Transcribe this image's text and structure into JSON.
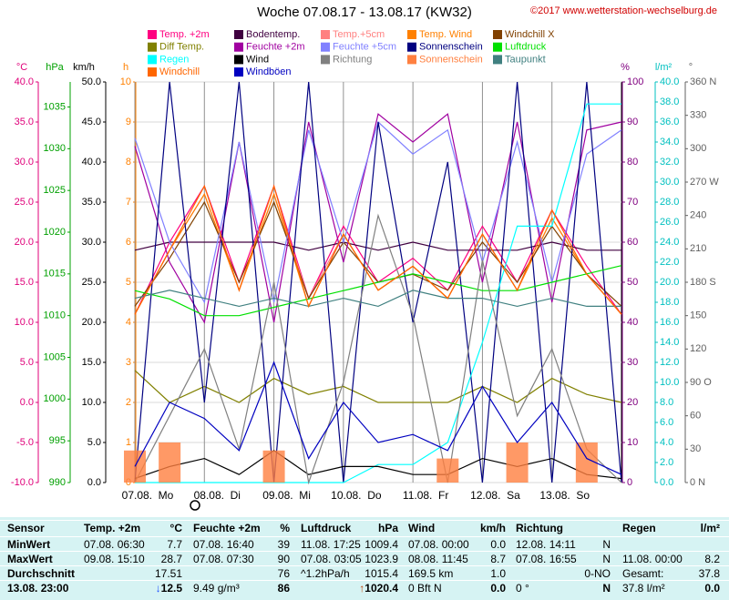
{
  "chart_data": {
    "type": "line",
    "title": "Woche 07.08.17 - 13.08.17 (KW32)",
    "copyright": "©2017 www.wetterstation-wechselburg.de",
    "grid": true,
    "x": [
      0,
      12,
      24,
      36,
      48,
      60,
      72,
      84,
      96,
      108,
      120,
      132,
      144,
      156,
      168
    ],
    "xlim": [
      0,
      168
    ],
    "xticks": [
      {
        "value": 0,
        "label": "07.08.  Mo"
      },
      {
        "value": 24,
        "label": "08.08.  Di"
      },
      {
        "value": 48,
        "label": "09.08.  Mi"
      },
      {
        "value": 72,
        "label": "10.08.  Do"
      },
      {
        "value": 96,
        "label": "11.08.  Fr"
      },
      {
        "value": 120,
        "label": "12.08.  Sa"
      },
      {
        "value": 144,
        "label": "13.08.  So"
      }
    ],
    "axes": [
      {
        "unit": "°C",
        "color": "#e0007a",
        "ylim": [
          -10,
          40
        ],
        "yticks": [
          {
            "value": -10,
            "label": "-10.0"
          },
          {
            "value": -5,
            "label": "-5.0"
          },
          {
            "value": 0,
            "label": "0.0"
          },
          {
            "value": 5,
            "label": "5.0"
          },
          {
            "value": 10,
            "label": "10.0"
          },
          {
            "value": 15,
            "label": "15.0"
          },
          {
            "value": 20,
            "label": "20.0"
          },
          {
            "value": 25,
            "label": "25.0"
          },
          {
            "value": 30,
            "label": "30.0"
          },
          {
            "value": 35,
            "label": "35.0"
          },
          {
            "value": 40,
            "label": "40.0"
          }
        ]
      },
      {
        "unit": "hPa",
        "color": "#00a000",
        "ylim": [
          990,
          1038
        ],
        "yticks": [
          990,
          995,
          1000,
          1005,
          1010,
          1015,
          1020,
          1025,
          1030,
          1035
        ]
      },
      {
        "unit": "km/h",
        "color": "#000000",
        "ylim": [
          0,
          50
        ],
        "yticks": [
          {
            "value": 0,
            "label": "0.0"
          },
          {
            "value": 5,
            "label": "5.0"
          },
          {
            "value": 10,
            "label": "10.0"
          },
          {
            "value": 15,
            "label": "15.0"
          },
          {
            "value": 20,
            "label": "20.0"
          },
          {
            "value": 25,
            "label": "25.0"
          },
          {
            "value": 30,
            "label": "30.0"
          },
          {
            "value": 35,
            "label": "35.0"
          },
          {
            "value": 40,
            "label": "40.0"
          },
          {
            "value": 45,
            "label": "45.0"
          },
          {
            "value": 50,
            "label": "50.0"
          }
        ]
      },
      {
        "unit": "h",
        "color": "#ff8000",
        "ylim": [
          0,
          10
        ],
        "yticks": [
          0,
          1,
          2,
          3,
          4,
          5,
          6,
          7,
          8,
          9,
          10
        ]
      },
      {
        "unit": "%",
        "color": "#800080",
        "ylim": [
          0,
          100
        ],
        "yticks": [
          0,
          10,
          20,
          30,
          40,
          50,
          60,
          70,
          80,
          90,
          100
        ]
      },
      {
        "unit": "l/m²",
        "color": "#00c0c0",
        "ylim": [
          0,
          40
        ],
        "yticks": [
          {
            "value": 0,
            "label": "0.0"
          },
          {
            "value": 2,
            "label": "2.0"
          },
          {
            "value": 4,
            "label": "4.0"
          },
          {
            "value": 6,
            "label": "6.0"
          },
          {
            "value": 8,
            "label": "8.0"
          },
          {
            "value": 10,
            "label": "10.0"
          },
          {
            "value": 12,
            "label": "12.0"
          },
          {
            "value": 14,
            "label": "14.0"
          },
          {
            "value": 16,
            "label": "16.0"
          },
          {
            "value": 18,
            "label": "18.0"
          },
          {
            "value": 20,
            "label": "20.0"
          },
          {
            "value": 22,
            "label": "22.0"
          },
          {
            "value": 24,
            "label": "24.0"
          },
          {
            "value": 26,
            "label": "26.0"
          },
          {
            "value": 28,
            "label": "28.0"
          },
          {
            "value": 30,
            "label": "30.0"
          },
          {
            "value": 32,
            "label": "32.0"
          },
          {
            "value": 34,
            "label": "34.0"
          },
          {
            "value": 36,
            "label": "36.0"
          },
          {
            "value": 38,
            "label": "38.0"
          },
          {
            "value": 40,
            "label": "40.0"
          }
        ]
      },
      {
        "unit": "°",
        "color": "#606060",
        "ylim": [
          0,
          360
        ],
        "yticks": [
          {
            "value": 0,
            "label": "0 N"
          },
          30,
          60,
          {
            "value": 90,
            "label": "90 O"
          },
          120,
          150,
          {
            "value": 180,
            "label": "180 S"
          },
          210,
          240,
          {
            "value": 270,
            "label": "270 W"
          },
          300,
          330,
          {
            "value": 360,
            "label": "360 N"
          }
        ]
      }
    ],
    "series": [
      {
        "name": "Temp. +2m",
        "color": "#ff0080",
        "axis": 0,
        "values": [
          11,
          20,
          27,
          15,
          27,
          13,
          22,
          15,
          18,
          14,
          22,
          15,
          24,
          17,
          11
        ]
      },
      {
        "name": "Bodentemp.",
        "color": "#400040",
        "axis": 0,
        "values": [
          19,
          20,
          20,
          20,
          20,
          19,
          20,
          19,
          20,
          19,
          19,
          19,
          20,
          19,
          19
        ]
      },
      {
        "name": "Temp.+5cm",
        "color": "#ff8080",
        "axis": 0,
        "values": [
          11,
          19,
          26,
          14,
          26,
          13,
          21,
          14,
          17,
          13,
          21,
          14,
          23,
          16,
          11
        ]
      },
      {
        "name": "Temp. Wind",
        "color": "#ff8000",
        "axis": 0,
        "values": [
          11,
          19,
          26,
          14,
          26,
          12,
          21,
          14,
          17,
          13,
          21,
          14,
          23,
          16,
          11
        ]
      },
      {
        "name": "Windchill X",
        "color": "#804000",
        "axis": 0,
        "values": [
          12,
          18,
          25,
          15,
          25,
          13,
          20,
          15,
          16,
          14,
          20,
          15,
          22,
          16,
          12
        ]
      },
      {
        "name": "Diff Temp.",
        "color": "#808000",
        "axis": 0,
        "values": [
          4,
          0,
          2,
          0,
          3,
          1,
          2,
          0,
          0,
          0,
          2,
          0,
          3,
          1,
          0
        ]
      },
      {
        "name": "Feuchte +2m",
        "color": "#a000a0",
        "axis": 4,
        "values": [
          84,
          55,
          40,
          85,
          40,
          90,
          55,
          92,
          85,
          92,
          50,
          90,
          45,
          88,
          90
        ]
      },
      {
        "name": "Feuchte +5cm",
        "color": "#8080ff",
        "axis": 4,
        "values": [
          86,
          60,
          45,
          85,
          45,
          88,
          60,
          90,
          82,
          88,
          55,
          85,
          50,
          82,
          88
        ]
      },
      {
        "name": "Sonnenschein",
        "color": "#000080",
        "axis": 3,
        "values": [
          0,
          10,
          2,
          10,
          0,
          10,
          0,
          9,
          4,
          8,
          0,
          10,
          0,
          10,
          0
        ]
      },
      {
        "name": "Luftdruck",
        "color": "#00e000",
        "axis": 1,
        "values": [
          1013,
          1012,
          1010,
          1010,
          1011,
          1012,
          1013,
          1014,
          1015,
          1014,
          1013,
          1013,
          1014,
          1015,
          1016
        ]
      },
      {
        "name": "Regen",
        "color": "#00ffff",
        "axis": 5,
        "values": [
          0,
          0,
          0,
          0,
          0,
          0,
          0,
          1.8,
          1.8,
          4,
          14,
          25.6,
          25.6,
          37.8,
          37.8
        ]
      },
      {
        "name": "Wind",
        "color": "#000000",
        "axis": 2,
        "values": [
          0.5,
          2,
          3,
          1,
          4,
          1,
          2,
          2,
          1,
          1,
          3,
          2,
          3,
          1,
          0.5
        ]
      },
      {
        "name": "Richtung",
        "color": "#808080",
        "axis": 6,
        "values": [
          0,
          60,
          120,
          30,
          180,
          0,
          90,
          240,
          150,
          0,
          200,
          60,
          120,
          30,
          0
        ]
      },
      {
        "name": "Sonnenschein",
        "color": "#ff8040",
        "axis": 3,
        "style": "bar",
        "values": [
          0.8,
          1,
          0,
          0,
          0.8,
          0,
          0,
          0,
          0,
          0.6,
          0,
          1,
          0,
          1,
          0
        ]
      },
      {
        "name": "Taupunkt",
        "color": "#408080",
        "axis": 0,
        "values": [
          13,
          14,
          13,
          12,
          13,
          12,
          13,
          12,
          14,
          13,
          13,
          12,
          13,
          12,
          12
        ]
      },
      {
        "name": "Windchill",
        "color": "#ff6600",
        "axis": 0,
        "values": [
          11,
          19,
          27,
          14,
          27,
          12,
          21,
          14,
          17,
          13,
          21,
          14,
          24,
          16,
          11
        ]
      },
      {
        "name": "Windböen",
        "color": "#0000c0",
        "axis": 2,
        "values": [
          2,
          10,
          8,
          4,
          15,
          3,
          10,
          5,
          6,
          4,
          12,
          5,
          10,
          3,
          1
        ]
      }
    ]
  },
  "table": {
    "labels": [
      "Sensor",
      "MinWert",
      "MaxWert",
      "Durchschnitt",
      "13.08. 23:00"
    ],
    "groups": [
      {
        "title": "Temp. +2m",
        "unit": "°C",
        "trend": "down",
        "rows": [
          [
            "07.08.  06:30",
            "7.7"
          ],
          [
            "09.08.  15:10",
            "28.7"
          ],
          [
            null,
            "17.51"
          ],
          [
            null,
            "12.5"
          ]
        ]
      },
      {
        "title": "Feuchte +2m",
        "unit": "%",
        "rows": [
          [
            "07.08.  16:40",
            "39"
          ],
          [
            "07.08.  07:30",
            "90"
          ],
          [
            null,
            "76"
          ],
          [
            "9.49 g/m³",
            "86"
          ]
        ]
      },
      {
        "title": "Luftdruck",
        "unit": "hPa",
        "trend": "up",
        "rows": [
          [
            "11.08.  17:25",
            "1009.4"
          ],
          [
            "07.08.  03:05",
            "1023.9"
          ],
          [
            "^1.2hPa/h",
            "1015.4"
          ],
          [
            null,
            "1020.4"
          ]
        ]
      },
      {
        "title": "Wind",
        "unit": "km/h",
        "rows": [
          [
            "07.08.  00:00",
            "0.0"
          ],
          [
            "08.08.  11:45",
            "8.7"
          ],
          [
            "169.5 km",
            "1.0"
          ],
          [
            "0 Bft N",
            "0.0"
          ]
        ]
      },
      {
        "title": "Richtung",
        "rows": [
          [
            "12.08.  14:11",
            "N"
          ],
          [
            "07.08.  16:55",
            "N"
          ],
          [
            null,
            "0-NO"
          ],
          [
            "0 °",
            "N"
          ]
        ]
      },
      {
        "title": "Regen",
        "unit": "l/m²",
        "rows": [
          [
            null,
            null
          ],
          [
            "11.08.  00:00",
            "8.2"
          ],
          [
            "Gesamt:",
            "37.8"
          ],
          [
            "37.8 l/m²",
            "0.0"
          ]
        ]
      }
    ]
  }
}
